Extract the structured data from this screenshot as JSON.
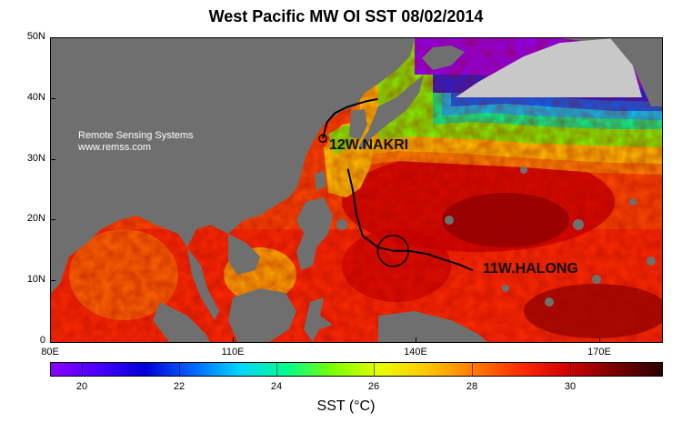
{
  "title": "West Pacific MW OI SST 08/02/2014",
  "credit": {
    "line1": "Remote Sensing Systems",
    "line2": "www.remss.com"
  },
  "y_axis": {
    "ticks": [
      "50N",
      "40N",
      "30N",
      "20N",
      "10N",
      "0"
    ]
  },
  "x_axis": {
    "ticks": [
      "80E",
      "110E",
      "140E",
      "170E"
    ]
  },
  "colorbar": {
    "label": "SST (°C)",
    "ticks": [
      "20",
      "22",
      "24",
      "26",
      "28",
      "30"
    ],
    "colors": [
      "#8b00ff",
      "#4b00ff",
      "#0000d8",
      "#0064ff",
      "#00d4ff",
      "#00ff90",
      "#7cff00",
      "#e8ff00",
      "#ffc800",
      "#ff7a00",
      "#ff2c00",
      "#d00000",
      "#7a0000",
      "#2a0000"
    ]
  },
  "storms": [
    {
      "name": "12W.NAKRI"
    },
    {
      "name": "11W.HALONG"
    }
  ],
  "colors": {
    "land": "#6f6f6f",
    "ice": "#c8c8c8",
    "track": "#000000"
  },
  "chart_data": {
    "type": "heatmap",
    "title": "West Pacific MW OI SST 08/02/2014",
    "xlabel": "",
    "ylabel": "",
    "xlim": [
      80,
      180
    ],
    "ylim": [
      0,
      50
    ],
    "x_ticks": [
      "80E",
      "110E",
      "140E",
      "170E"
    ],
    "y_ticks": [
      "0",
      "10N",
      "20N",
      "30N",
      "40N",
      "50N"
    ],
    "colorbar_range": [
      19.3,
      32.0
    ],
    "colorbar_ticks": [
      20,
      22,
      24,
      26,
      28,
      30
    ],
    "storm_tracks": [
      {
        "name": "12W.NAKRI",
        "points": [
          [
            124.5,
            33.5
          ],
          [
            125.2,
            36.2
          ],
          [
            126.5,
            37.7
          ],
          [
            128.5,
            38.7
          ],
          [
            131.5,
            39.6
          ],
          [
            133.5,
            40.0
          ]
        ]
      },
      {
        "name": "11W.HALONG",
        "points": [
          [
            149.0,
            11.8
          ],
          [
            147.0,
            12.7
          ],
          [
            144.5,
            13.5
          ],
          [
            141.5,
            14.5
          ],
          [
            138.5,
            15.0
          ],
          [
            136.0,
            15.0
          ],
          [
            133.5,
            15.6
          ],
          [
            131.0,
            17.5
          ],
          [
            130.0,
            21.0
          ],
          [
            129.4,
            25.0
          ],
          [
            128.6,
            28.5
          ]
        ]
      }
    ]
  }
}
